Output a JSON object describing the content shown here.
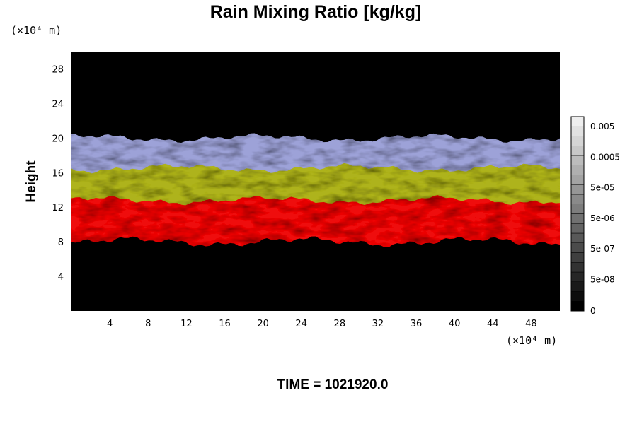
{
  "chart_data": {
    "type": "heatmap",
    "title": "Rain Mixing Ratio [kg/kg]",
    "ylabel": "Height",
    "x_unit": "(×10⁴ m)",
    "y_unit": "(×10⁴ m)",
    "xlim": [
      0,
      51
    ],
    "ylim": [
      0,
      30
    ],
    "x_ticks": [
      4,
      8,
      12,
      16,
      20,
      24,
      28,
      32,
      36,
      40,
      44,
      48
    ],
    "y_ticks": [
      4,
      8,
      12,
      16,
      20,
      24,
      28
    ],
    "background_color": "#000000",
    "layers": [
      {
        "color": "#9da2d8",
        "y_bottom": 15.5,
        "y_top": 20.0
      },
      {
        "color": "#aeb31a",
        "y_bottom": 12.0,
        "y_top": 16.5
      },
      {
        "color": "#ef0d0d",
        "y_bottom": 8.0,
        "y_top": 12.8
      }
    ],
    "colorbar": {
      "labels": [
        "0.005",
        "0.0005",
        "5e-05",
        "5e-06",
        "5e-07",
        "5e-08",
        "0"
      ],
      "levels": 20,
      "color_low": "#000000",
      "color_high": "#eeeeee"
    },
    "time_label": "TIME = 1021920.0"
  }
}
